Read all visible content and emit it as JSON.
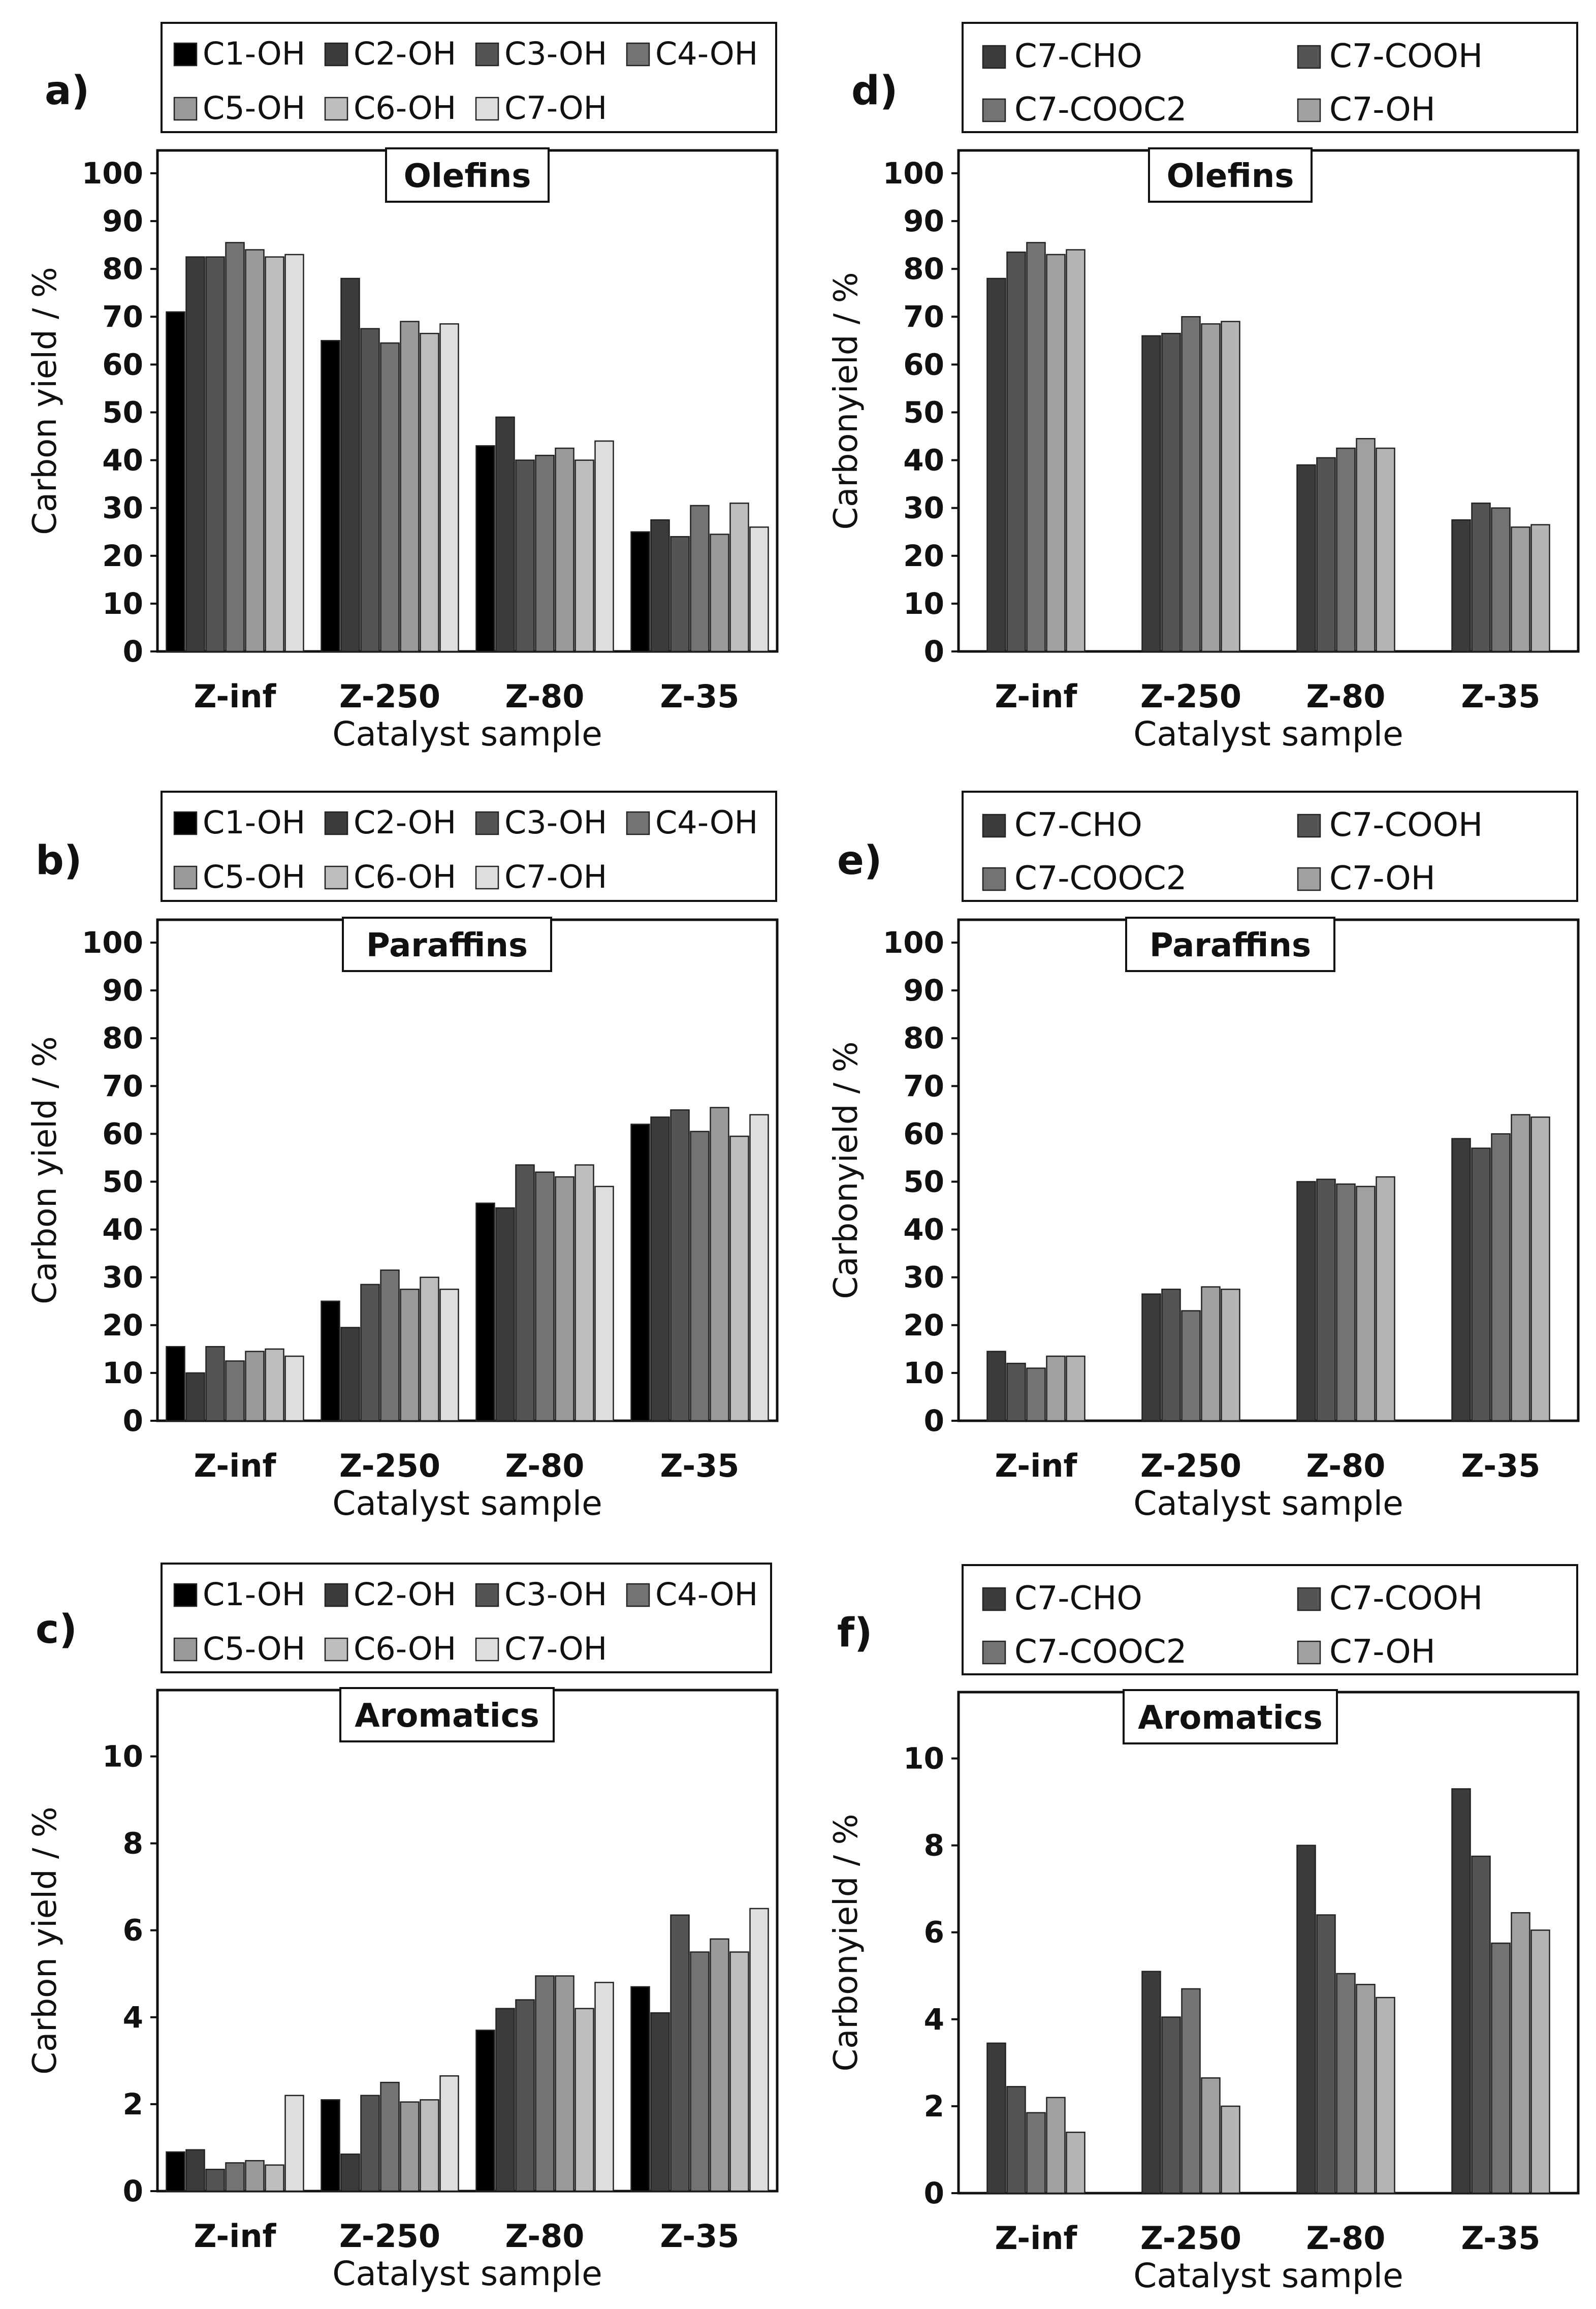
{
  "chart_data": [
    {
      "panel_label": "a)",
      "type": "bar",
      "title": "Olefins",
      "xlabel": "Catalyst sample",
      "ylabel": "Carbon yield / %",
      "ylim": [
        0,
        100
      ],
      "yticks": [
        "0",
        "10",
        "20",
        "30",
        "40",
        "50",
        "60",
        "70",
        "80",
        "90",
        "100"
      ],
      "categories": [
        "Z-inf",
        "Z-250",
        "Z-80",
        "Z-35"
      ],
      "legend_placement": "top",
      "series": [
        {
          "name": "C1-OH",
          "color": "#000000",
          "values": [
            71,
            65,
            43,
            25
          ]
        },
        {
          "name": "C2-OH",
          "color": "#3b3b3b",
          "values": [
            82.5,
            78,
            49,
            27.5
          ]
        },
        {
          "name": "C3-OH",
          "color": "#545454",
          "values": [
            82.5,
            67.5,
            40,
            24
          ]
        },
        {
          "name": "C4-OH",
          "color": "#737373",
          "values": [
            85.5,
            64.5,
            41,
            30.5
          ]
        },
        {
          "name": "C5-OH",
          "color": "#9a9a9a",
          "values": [
            84,
            69,
            42.5,
            24.5
          ]
        },
        {
          "name": "C6-OH",
          "color": "#bdbdbd",
          "values": [
            82.5,
            66.5,
            40,
            31
          ]
        },
        {
          "name": "C7-OH",
          "color": "#dedede",
          "values": [
            83,
            68.5,
            44,
            26
          ]
        }
      ]
    },
    {
      "panel_label": "b)",
      "type": "bar",
      "title": "Paraffins",
      "xlabel": "Catalyst sample",
      "ylabel": "Carbon yield / %",
      "ylim": [
        0,
        100
      ],
      "yticks": [
        "0",
        "10",
        "20",
        "30",
        "40",
        "50",
        "60",
        "70",
        "80",
        "90",
        "100"
      ],
      "categories": [
        "Z-inf",
        "Z-250",
        "Z-80",
        "Z-35"
      ],
      "legend_placement": "top",
      "series": [
        {
          "name": "C1-OH",
          "color": "#000000",
          "values": [
            15.5,
            25,
            45.5,
            62
          ]
        },
        {
          "name": "C2-OH",
          "color": "#3b3b3b",
          "values": [
            10,
            19.5,
            44.5,
            63.5
          ]
        },
        {
          "name": "C3-OH",
          "color": "#545454",
          "values": [
            15.5,
            28.5,
            53.5,
            65
          ]
        },
        {
          "name": "C4-OH",
          "color": "#737373",
          "values": [
            12.5,
            31.5,
            52,
            60.5
          ]
        },
        {
          "name": "C5-OH",
          "color": "#9a9a9a",
          "values": [
            14.5,
            27.5,
            51,
            65.5
          ]
        },
        {
          "name": "C6-OH",
          "color": "#bdbdbd",
          "values": [
            15,
            30,
            53.5,
            59.5
          ]
        },
        {
          "name": "C7-OH",
          "color": "#dedede",
          "values": [
            13.5,
            27.5,
            49,
            64
          ]
        }
      ]
    },
    {
      "panel_label": "c)",
      "type": "bar",
      "title": "Aromatics",
      "xlabel": "Catalyst sample",
      "ylabel": "Carbon yield / %",
      "ylim": [
        0,
        11
      ],
      "yticks": [
        "0",
        "2",
        "4",
        "6",
        "8",
        "10"
      ],
      "categories": [
        "Z-inf",
        "Z-250",
        "Z-80",
        "Z-35"
      ],
      "legend_placement": "top",
      "series": [
        {
          "name": "C1-OH",
          "color": "#000000",
          "values": [
            0.9,
            2.1,
            3.7,
            4.7
          ]
        },
        {
          "name": "C2-OH",
          "color": "#3b3b3b",
          "values": [
            0.95,
            0.85,
            4.2,
            4.1
          ]
        },
        {
          "name": "C3-OH",
          "color": "#545454",
          "values": [
            0.5,
            2.2,
            4.4,
            6.35
          ]
        },
        {
          "name": "C4-OH",
          "color": "#737373",
          "values": [
            0.65,
            2.5,
            4.95,
            5.5
          ]
        },
        {
          "name": "C5-OH",
          "color": "#9a9a9a",
          "values": [
            0.7,
            2.05,
            4.95,
            5.8
          ]
        },
        {
          "name": "C6-OH",
          "color": "#bdbdbd",
          "values": [
            0.6,
            2.1,
            4.2,
            5.5
          ]
        },
        {
          "name": "C7-OH",
          "color": "#dedede",
          "values": [
            2.2,
            2.65,
            4.8,
            6.5
          ]
        }
      ]
    },
    {
      "panel_label": "d)",
      "type": "bar",
      "title": "Olefins",
      "xlabel": "Catalyst sample",
      "ylabel": "Carbonyield / %",
      "ylim": [
        0,
        100
      ],
      "yticks": [
        "0",
        "10",
        "20",
        "30",
        "40",
        "50",
        "60",
        "70",
        "80",
        "90",
        "100"
      ],
      "categories": [
        "Z-inf",
        "Z-250",
        "Z-80",
        "Z-35"
      ],
      "legend_placement": "top",
      "legend_columns": 2,
      "series": [
        {
          "name": "C7-CHO",
          "color": "#3b3b3b",
          "values": [
            78,
            66,
            39,
            27.5
          ]
        },
        {
          "name": "C7-COOH",
          "color": "#545454",
          "values": [
            83.5,
            66.5,
            40.5,
            31
          ]
        },
        {
          "name": "C7-COOC2",
          "color": "#737373",
          "values": [
            85.5,
            70,
            42.5,
            30
          ]
        },
        {
          "name": "C7-OH",
          "color": "#a0a0a0",
          "values": [
            83,
            68.5,
            44.5,
            26
          ]
        },
        {
          "name": "",
          "color": "#b5b5b5",
          "values": [
            84,
            69,
            42.5,
            26.5
          ]
        }
      ]
    },
    {
      "panel_label": "e)",
      "type": "bar",
      "title": "Paraffins",
      "xlabel": "Catalyst sample",
      "ylabel": "Carbonyield / %",
      "ylim": [
        0,
        100
      ],
      "yticks": [
        "0",
        "10",
        "20",
        "30",
        "40",
        "50",
        "60",
        "70",
        "80",
        "90",
        "100"
      ],
      "categories": [
        "Z-inf",
        "Z-250",
        "Z-80",
        "Z-35"
      ],
      "legend_placement": "top",
      "legend_columns": 2,
      "series": [
        {
          "name": "C7-CHO",
          "color": "#3b3b3b",
          "values": [
            14.5,
            26.5,
            50,
            59
          ]
        },
        {
          "name": "C7-COOH",
          "color": "#545454",
          "values": [
            12,
            27.5,
            50.5,
            57
          ]
        },
        {
          "name": "C7-COOC2",
          "color": "#737373",
          "values": [
            11,
            23,
            49.5,
            60
          ]
        },
        {
          "name": "C7-OH",
          "color": "#a0a0a0",
          "values": [
            13.5,
            28,
            49,
            64
          ]
        },
        {
          "name": "",
          "color": "#b5b5b5",
          "values": [
            13.5,
            27.5,
            51,
            63.5
          ]
        }
      ]
    },
    {
      "panel_label": "f)",
      "type": "bar",
      "title": "Aromatics",
      "xlabel": "Catalyst sample",
      "ylabel": "Carbonyield / %",
      "ylim": [
        0,
        11
      ],
      "yticks": [
        "0",
        "2",
        "4",
        "6",
        "8",
        "10"
      ],
      "categories": [
        "Z-inf",
        "Z-250",
        "Z-80",
        "Z-35"
      ],
      "legend_placement": "top",
      "legend_columns": 2,
      "series": [
        {
          "name": "C7-CHO",
          "color": "#3b3b3b",
          "values": [
            3.45,
            5.1,
            8.0,
            9.3
          ]
        },
        {
          "name": "C7-COOH",
          "color": "#545454",
          "values": [
            2.45,
            4.05,
            6.4,
            7.75
          ]
        },
        {
          "name": "C7-COOC2",
          "color": "#737373",
          "values": [
            1.85,
            4.7,
            5.05,
            5.75
          ]
        },
        {
          "name": "C7-OH",
          "color": "#a0a0a0",
          "values": [
            2.2,
            2.65,
            4.8,
            6.45
          ]
        },
        {
          "name": "",
          "color": "#b5b5b5",
          "values": [
            1.4,
            2.0,
            4.5,
            6.05
          ]
        }
      ]
    }
  ]
}
